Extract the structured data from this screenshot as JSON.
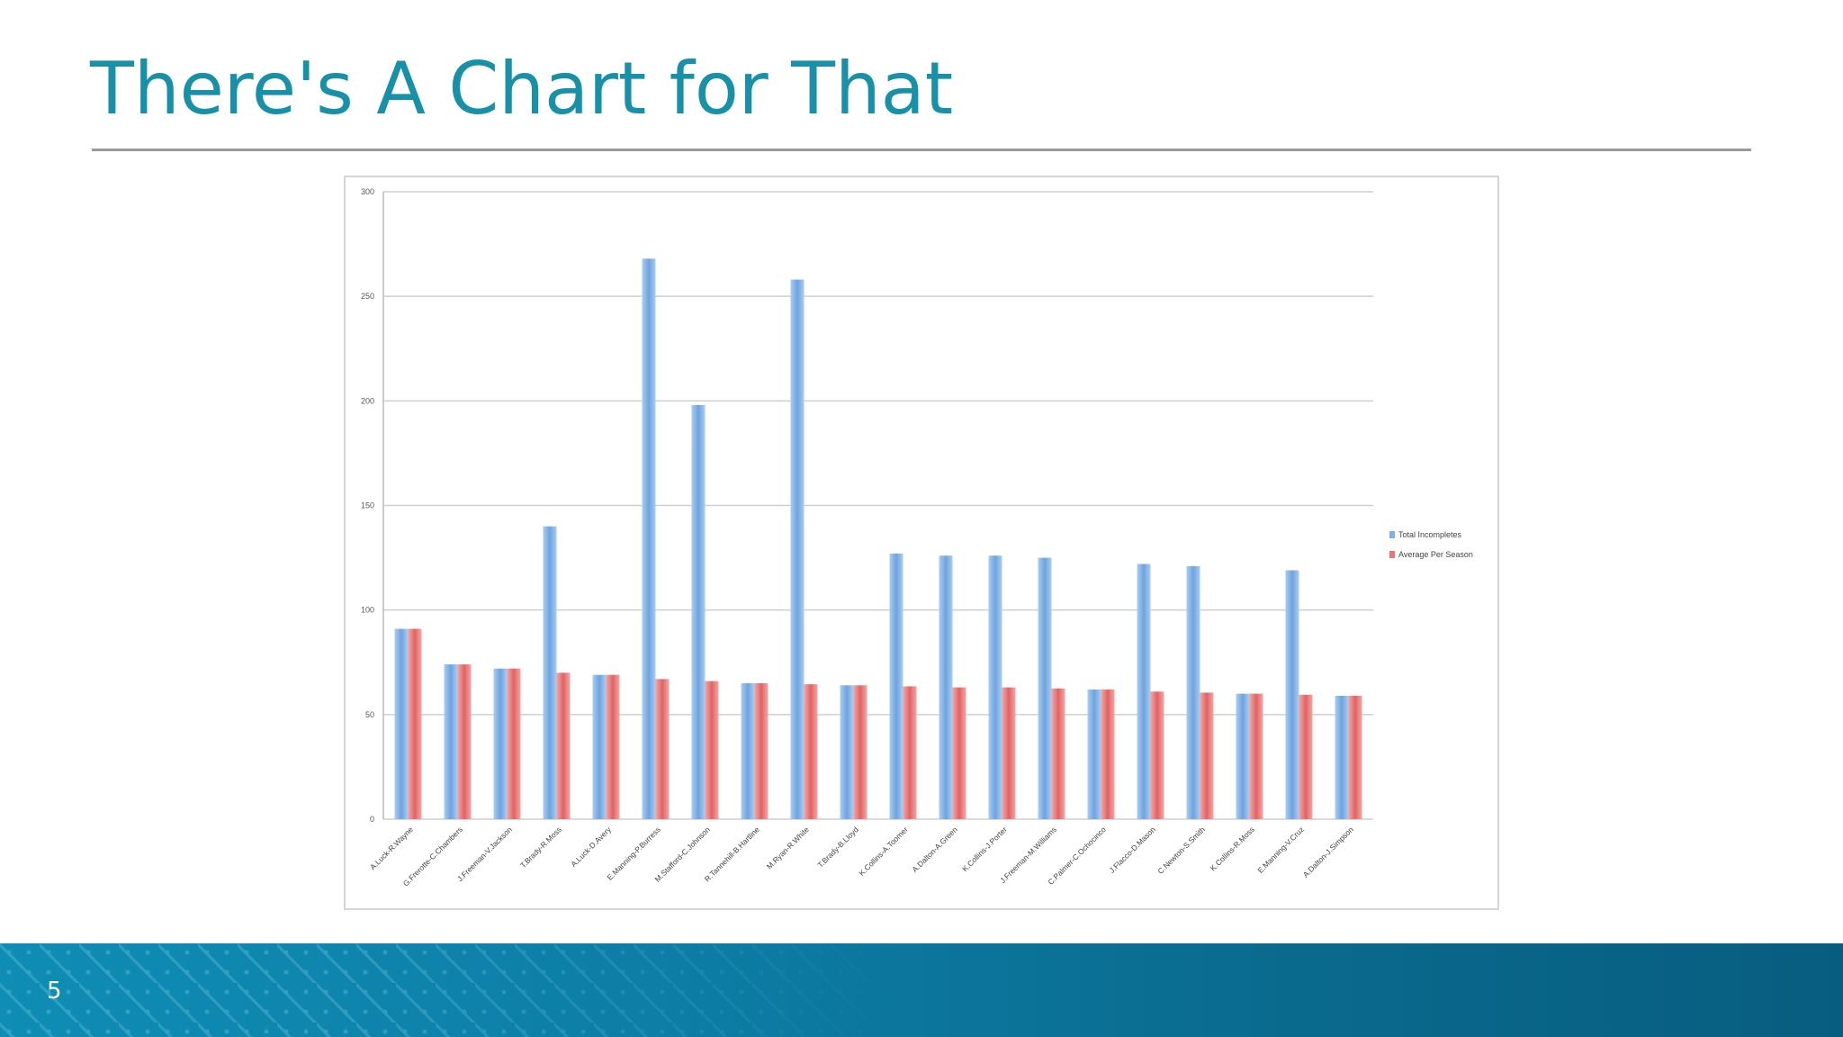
{
  "slide": {
    "title": "There's A Chart for That",
    "page_number": "5"
  },
  "colors": {
    "title": "#1790a8",
    "series_total": "#7fb0e6",
    "series_average": "#e87676",
    "footer": "#0d7ea6"
  },
  "chart_data": {
    "type": "bar",
    "title": "",
    "xlabel": "",
    "ylabel": "",
    "ylim": [
      0,
      300
    ],
    "yticks": [
      0,
      50,
      100,
      150,
      200,
      250,
      300
    ],
    "grid": true,
    "legend_position": "right",
    "categories": [
      "A.Luck-R.Wayne",
      "G.Frerotte-C.Chambers",
      "J.Freeman-V.Jackson",
      "T.Brady-R.Moss",
      "A.Luck-D.Avery",
      "E.Manning-P.Burress",
      "M.Stafford-C.Johnson",
      "R.Tannehill-B.Hartline",
      "M.Ryan-R.White",
      "T.Brady-B.Lloyd",
      "K.Collins-A.Toomer",
      "A.Dalton-A.Green",
      "K.Collins-J.Porter",
      "J.Freeman-M.Williams",
      "C.Palmer-C.Ochocinco",
      "J.Flacco-D.Mason",
      "C.Newton-S.Smith",
      "K.Collins-R.Moss",
      "E.Manning-V.Cruz",
      "A.Dalton-J.Simpson"
    ],
    "series": [
      {
        "name": "Total Incompletes",
        "values": [
          91,
          74,
          72,
          140,
          69,
          268,
          198,
          65,
          258,
          64,
          127,
          126,
          126,
          125,
          62,
          122,
          121,
          60,
          119,
          59
        ]
      },
      {
        "name": "Average Per Season",
        "values": [
          91,
          74,
          72,
          70,
          69,
          67,
          66,
          65,
          64.5,
          64,
          63.5,
          63,
          63,
          62.5,
          62,
          61,
          60.5,
          60,
          59.5,
          59
        ]
      }
    ]
  }
}
